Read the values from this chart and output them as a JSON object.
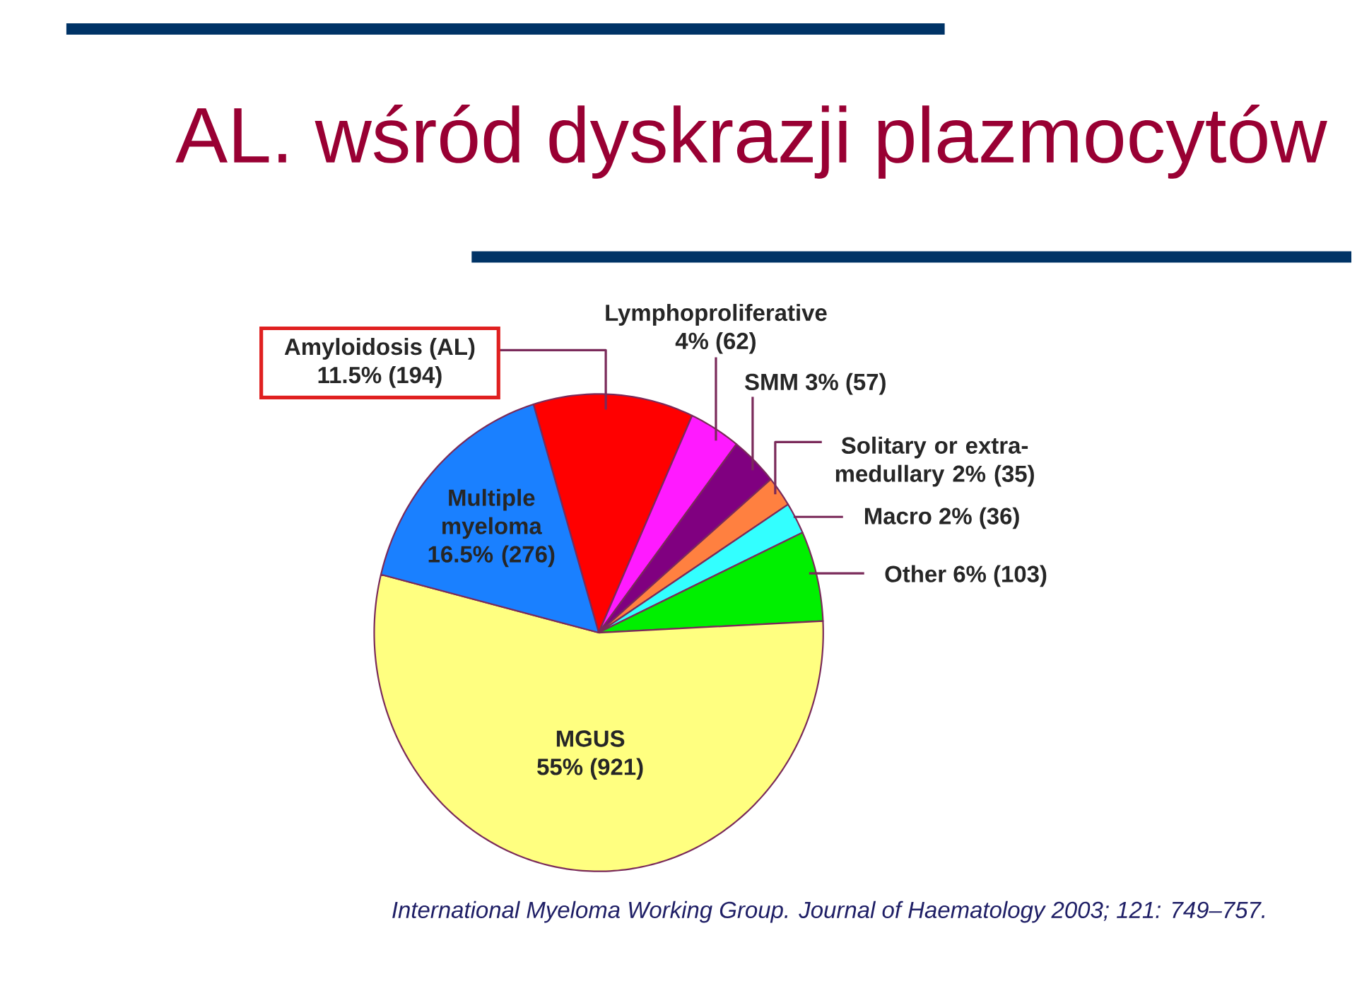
{
  "chart_data": {
    "type": "pie",
    "title": "AL. wśród dyskrazji plazmocytów",
    "categories": [
      "Amyloidosis (AL)",
      "Lymphoproliferative",
      "SMM",
      "Solitary or extra-medullary",
      "Macro",
      "Other",
      "MGUS",
      "Multiple myeloma"
    ],
    "values": [
      194,
      62,
      57,
      35,
      36,
      103,
      921,
      276
    ],
    "value_labels": [
      "11.5% (194)",
      "4% (62)",
      "3% (57)",
      "2% (35)",
      "2% (36)",
      "6% (103)",
      "55% (921)",
      "16.5% (276)"
    ],
    "colors": [
      "#ff0000",
      "#ff1aff",
      "#800080",
      "#ff8040",
      "#33ffff",
      "#00f000",
      "#ffff80",
      "#1a80ff"
    ],
    "annotations": [
      "International Myeloma Working Group. Journal of Haematology 2003; 121: 749–757."
    ]
  }
}
